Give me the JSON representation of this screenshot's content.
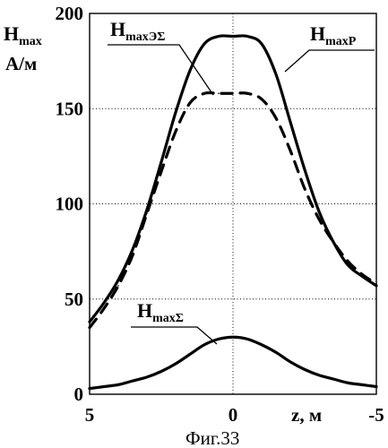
{
  "chart_data": {
    "type": "line",
    "ylabel_main": "H",
    "ylabel_sub": "max",
    "yunit": "А/м",
    "xlabel": "z, м",
    "caption": "Фиг.33",
    "xlim": [
      5,
      -5
    ],
    "ylim": [
      0,
      200
    ],
    "xticks": [
      5,
      0,
      -5
    ],
    "yticks": [
      0,
      50,
      100,
      150,
      200
    ],
    "grid": true,
    "series": [
      {
        "name": "HmaxP",
        "name_main": "H",
        "name_sub": "maxP",
        "style": "solid",
        "x": [
          5,
          4.5,
          4,
          3.5,
          3,
          2.5,
          2,
          1.5,
          1,
          0.5,
          0,
          -0.5,
          -1,
          -1.5,
          -2,
          -2.5,
          -3,
          -3.5,
          -4,
          -4.5,
          -5
        ],
        "y": [
          38,
          48,
          60,
          76,
          97,
          122,
          148,
          170,
          184,
          188,
          188,
          188,
          184,
          168,
          143,
          118,
          96,
          80,
          68,
          62,
          57
        ]
      },
      {
        "name": "HmaxЭΣ",
        "name_main": "H",
        "name_sub": "maxЭΣ",
        "style": "dashed",
        "x": [
          5,
          4.5,
          4,
          3.5,
          3,
          2.5,
          2,
          1.5,
          1,
          0.5,
          0,
          -0.5,
          -1,
          -1.5,
          -2,
          -2.5,
          -3,
          -3.5,
          -4,
          -4.5,
          -5
        ],
        "y": [
          35,
          45,
          57,
          73,
          95,
          117,
          138,
          153,
          158,
          158,
          158,
          158,
          155,
          145,
          128,
          108,
          92,
          80,
          70,
          63,
          58
        ]
      },
      {
        "name": "HmaxΣ",
        "name_main": "H",
        "name_sub": "maxΣ",
        "style": "solid",
        "x": [
          5,
          4.5,
          4,
          3.5,
          3,
          2.5,
          2,
          1.5,
          1,
          0.5,
          0,
          -0.5,
          -1,
          -1.5,
          -2,
          -2.5,
          -3,
          -3.5,
          -4,
          -4.5,
          -5
        ],
        "y": [
          3,
          4,
          5,
          7,
          9,
          12,
          16,
          21,
          26,
          29,
          30,
          29,
          26,
          22,
          17,
          13,
          10,
          8,
          6,
          5,
          4
        ]
      }
    ]
  }
}
